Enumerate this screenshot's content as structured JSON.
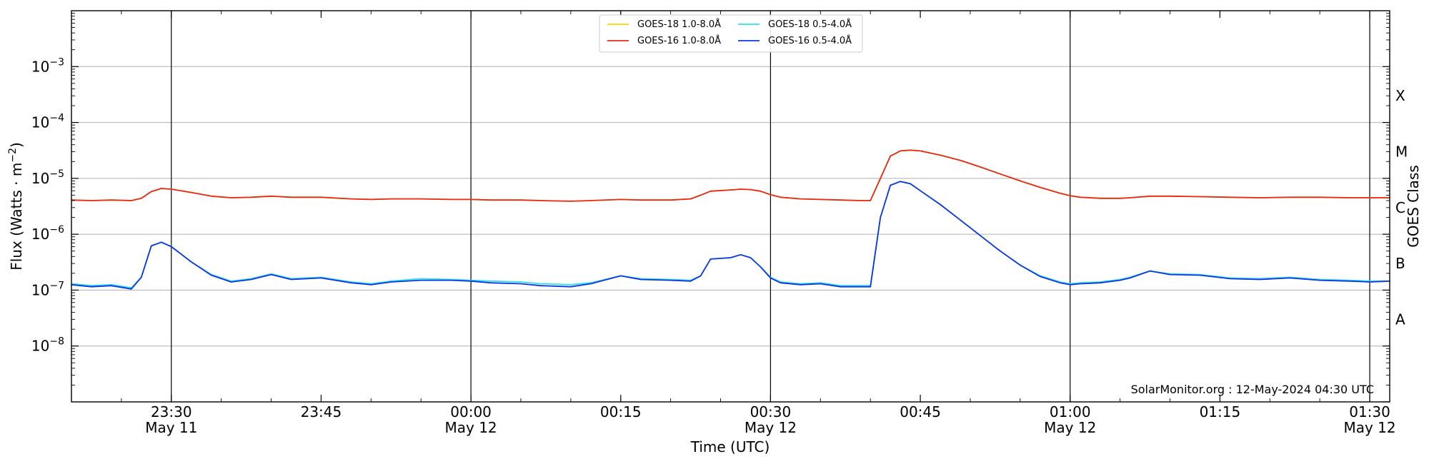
{
  "chart_data": {
    "type": "line",
    "x_range": [
      "2024-05-11 23:20",
      "2024-05-12 01:32"
    ],
    "ylim": [
      1e-09,
      0.01
    ],
    "y_scale": "log",
    "ylabel": "Flux (Watts · m",
    "ylabel_sup": "−2",
    "ylabel_close": ")",
    "xlabel": "Time (UTC)",
    "right_label": "GOES Class",
    "y_ticks": [
      {
        "value": 0.001,
        "base": "10",
        "exp": "−3"
      },
      {
        "value": 0.0001,
        "base": "10",
        "exp": "−4"
      },
      {
        "value": 1e-05,
        "base": "10",
        "exp": "−5"
      },
      {
        "value": 1e-06,
        "base": "10",
        "exp": "−6"
      },
      {
        "value": 1e-07,
        "base": "10",
        "exp": "−7"
      },
      {
        "value": 1e-08,
        "base": "10",
        "exp": "−8"
      }
    ],
    "x_ticks": [
      {
        "time": "2024-05-11 23:30",
        "label": "23:30",
        "date": "May 11",
        "vline": true
      },
      {
        "time": "2024-05-11 23:45",
        "label": "23:45",
        "date": "",
        "vline": false
      },
      {
        "time": "2024-05-12 00:00",
        "label": "00:00",
        "date": "May 12",
        "vline": true
      },
      {
        "time": "2024-05-12 00:15",
        "label": "00:15",
        "date": "",
        "vline": false
      },
      {
        "time": "2024-05-12 00:30",
        "label": "00:30",
        "date": "May 12",
        "vline": true
      },
      {
        "time": "2024-05-12 00:45",
        "label": "00:45",
        "date": "",
        "vline": false
      },
      {
        "time": "2024-05-12 01:00",
        "label": "01:00",
        "date": "May 12",
        "vline": true
      },
      {
        "time": "2024-05-12 01:15",
        "label": "01:15",
        "date": "",
        "vline": false
      },
      {
        "time": "2024-05-12 01:30",
        "label": "01:30",
        "date": "May 12",
        "vline": true
      }
    ],
    "goes_classes": [
      {
        "label": "X",
        "level": 0.0003
      },
      {
        "label": "M",
        "level": 3e-05
      },
      {
        "label": "C",
        "level": 3e-06
      },
      {
        "label": "B",
        "level": 3e-07
      },
      {
        "label": "A",
        "level": 3e-08
      }
    ],
    "grid": "horizontal at decades",
    "legend": "top-center, 2 columns",
    "x": [
      "2024-05-11 23:20",
      "2024-05-11 23:22",
      "2024-05-11 23:24",
      "2024-05-11 23:26",
      "2024-05-11 23:27",
      "2024-05-11 23:28",
      "2024-05-11 23:29",
      "2024-05-11 23:30",
      "2024-05-11 23:32",
      "2024-05-11 23:34",
      "2024-05-11 23:36",
      "2024-05-11 23:38",
      "2024-05-11 23:40",
      "2024-05-11 23:42",
      "2024-05-11 23:45",
      "2024-05-11 23:48",
      "2024-05-11 23:50",
      "2024-05-11 23:52",
      "2024-05-11 23:55",
      "2024-05-11 23:58",
      "2024-05-12 00:00",
      "2024-05-12 00:02",
      "2024-05-12 00:05",
      "2024-05-12 00:07",
      "2024-05-12 00:10",
      "2024-05-12 00:12",
      "2024-05-12 00:15",
      "2024-05-12 00:17",
      "2024-05-12 00:20",
      "2024-05-12 00:22",
      "2024-05-12 00:23",
      "2024-05-12 00:24",
      "2024-05-12 00:26",
      "2024-05-12 00:27",
      "2024-05-12 00:28",
      "2024-05-12 00:29",
      "2024-05-12 00:30",
      "2024-05-12 00:31",
      "2024-05-12 00:33",
      "2024-05-12 00:35",
      "2024-05-12 00:37",
      "2024-05-12 00:39",
      "2024-05-12 00:40",
      "2024-05-12 00:41",
      "2024-05-12 00:42",
      "2024-05-12 00:43",
      "2024-05-12 00:44",
      "2024-05-12 00:45",
      "2024-05-12 00:47",
      "2024-05-12 00:49",
      "2024-05-12 00:51",
      "2024-05-12 00:53",
      "2024-05-12 00:55",
      "2024-05-12 00:57",
      "2024-05-12 00:59",
      "2024-05-12 01:00",
      "2024-05-12 01:01",
      "2024-05-12 01:03",
      "2024-05-12 01:05",
      "2024-05-12 01:06",
      "2024-05-12 01:08",
      "2024-05-12 01:10",
      "2024-05-12 01:13",
      "2024-05-12 01:16",
      "2024-05-12 01:19",
      "2024-05-12 01:22",
      "2024-05-12 01:25",
      "2024-05-12 01:28",
      "2024-05-12 01:30",
      "2024-05-12 01:32"
    ],
    "series": [
      {
        "name": "GOES-18 1.0-8.0Å",
        "color": "#ffd700",
        "values": [
          4.1e-06,
          4e-06,
          4.1e-06,
          4e-06,
          4.4e-06,
          5.8e-06,
          6.6e-06,
          6.4e-06,
          5.6e-06,
          4.8e-06,
          4.5e-06,
          4.6e-06,
          4.8e-06,
          4.6e-06,
          4.6e-06,
          4.3e-06,
          4.2e-06,
          4.3e-06,
          4.3e-06,
          4.2e-06,
          4.2e-06,
          4.1e-06,
          4.1e-06,
          4e-06,
          3.9e-06,
          4e-06,
          4.2e-06,
          4.1e-06,
          4.1e-06,
          4.3e-06,
          5e-06,
          5.9e-06,
          6.2e-06,
          6.4e-06,
          6.3e-06,
          5.9e-06,
          5.1e-06,
          4.6e-06,
          4.3e-06,
          4.2e-06,
          4.1e-06,
          4e-06,
          4e-06,
          1e-05,
          2.5e-05,
          3.1e-05,
          3.2e-05,
          3.1e-05,
          2.6e-05,
          2.1e-05,
          1.6e-05,
          1.2e-05,
          9e-06,
          6.9e-06,
          5.4e-06,
          4.9e-06,
          4.6e-06,
          4.4e-06,
          4.4e-06,
          4.5e-06,
          4.8e-06,
          4.8e-06,
          4.7e-06,
          4.6e-06,
          4.5e-06,
          4.6e-06,
          4.6e-06,
          4.5e-06,
          4.5e-06,
          4.5e-06
        ]
      },
      {
        "name": "GOES-16 1.0-8.0Å",
        "color": "#e8281a",
        "values": [
          4.1e-06,
          4e-06,
          4.1e-06,
          4e-06,
          4.4e-06,
          5.8e-06,
          6.6e-06,
          6.4e-06,
          5.6e-06,
          4.8e-06,
          4.5e-06,
          4.6e-06,
          4.8e-06,
          4.6e-06,
          4.6e-06,
          4.3e-06,
          4.2e-06,
          4.3e-06,
          4.3e-06,
          4.2e-06,
          4.2e-06,
          4.1e-06,
          4.1e-06,
          4e-06,
          3.9e-06,
          4e-06,
          4.2e-06,
          4.1e-06,
          4.1e-06,
          4.3e-06,
          5e-06,
          5.9e-06,
          6.2e-06,
          6.4e-06,
          6.3e-06,
          5.9e-06,
          5.1e-06,
          4.6e-06,
          4.3e-06,
          4.2e-06,
          4.1e-06,
          4e-06,
          4e-06,
          1e-05,
          2.5e-05,
          3.1e-05,
          3.2e-05,
          3.1e-05,
          2.6e-05,
          2.1e-05,
          1.6e-05,
          1.2e-05,
          9e-06,
          6.9e-06,
          5.4e-06,
          4.9e-06,
          4.6e-06,
          4.4e-06,
          4.4e-06,
          4.5e-06,
          4.8e-06,
          4.8e-06,
          4.7e-06,
          4.6e-06,
          4.5e-06,
          4.6e-06,
          4.6e-06,
          4.5e-06,
          4.5e-06,
          4.5e-06
        ]
      },
      {
        "name": "GOES-18 0.5-4.0Å",
        "color": "#2fe0f0",
        "values": [
          1.3e-07,
          1.2e-07,
          1.25e-07,
          1.1e-07,
          1.7e-07,
          6.2e-07,
          7.2e-07,
          6e-07,
          3.2e-07,
          1.9e-07,
          1.45e-07,
          1.6e-07,
          1.95e-07,
          1.6e-07,
          1.7e-07,
          1.4e-07,
          1.3e-07,
          1.45e-07,
          1.6e-07,
          1.55e-07,
          1.5e-07,
          1.45e-07,
          1.4e-07,
          1.3e-07,
          1.25e-07,
          1.35e-07,
          1.8e-07,
          1.6e-07,
          1.55e-07,
          1.5e-07,
          1.8e-07,
          3.6e-07,
          3.8e-07,
          4.3e-07,
          3.8e-07,
          2.6e-07,
          1.7e-07,
          1.4e-07,
          1.3e-07,
          1.35e-07,
          1.2e-07,
          1.2e-07,
          1.2e-07,
          2e-06,
          7.5e-06,
          8.8e-06,
          8e-06,
          6e-06,
          3.4e-06,
          1.8e-06,
          9.5e-07,
          5e-07,
          2.8e-07,
          1.8e-07,
          1.4e-07,
          1.3e-07,
          1.35e-07,
          1.4e-07,
          1.55e-07,
          1.7e-07,
          2.2e-07,
          1.95e-07,
          1.9e-07,
          1.65e-07,
          1.6e-07,
          1.7e-07,
          1.55e-07,
          1.5e-07,
          1.45e-07,
          1.45e-07
        ]
      },
      {
        "name": "GOES-16 0.5-4.0Å",
        "color": "#1036e0",
        "values": [
          1.25e-07,
          1.15e-07,
          1.2e-07,
          1.05e-07,
          1.7e-07,
          6.2e-07,
          7.2e-07,
          6e-07,
          3.2e-07,
          1.85e-07,
          1.4e-07,
          1.55e-07,
          1.9e-07,
          1.55e-07,
          1.65e-07,
          1.35e-07,
          1.25e-07,
          1.4e-07,
          1.5e-07,
          1.5e-07,
          1.45e-07,
          1.35e-07,
          1.3e-07,
          1.2e-07,
          1.15e-07,
          1.3e-07,
          1.8e-07,
          1.55e-07,
          1.5e-07,
          1.45e-07,
          1.8e-07,
          3.6e-07,
          3.8e-07,
          4.3e-07,
          3.8e-07,
          2.6e-07,
          1.65e-07,
          1.35e-07,
          1.25e-07,
          1.3e-07,
          1.15e-07,
          1.15e-07,
          1.15e-07,
          2e-06,
          7.5e-06,
          8.8e-06,
          8e-06,
          6e-06,
          3.4e-06,
          1.8e-06,
          9.5e-07,
          5e-07,
          2.8e-07,
          1.75e-07,
          1.35e-07,
          1.25e-07,
          1.3e-07,
          1.35e-07,
          1.5e-07,
          1.65e-07,
          2.2e-07,
          1.9e-07,
          1.85e-07,
          1.6e-07,
          1.55e-07,
          1.65e-07,
          1.5e-07,
          1.45e-07,
          1.4e-07,
          1.45e-07
        ]
      }
    ],
    "footer": "SolarMonitor.org : 12-May-2024 04:30 UTC"
  }
}
